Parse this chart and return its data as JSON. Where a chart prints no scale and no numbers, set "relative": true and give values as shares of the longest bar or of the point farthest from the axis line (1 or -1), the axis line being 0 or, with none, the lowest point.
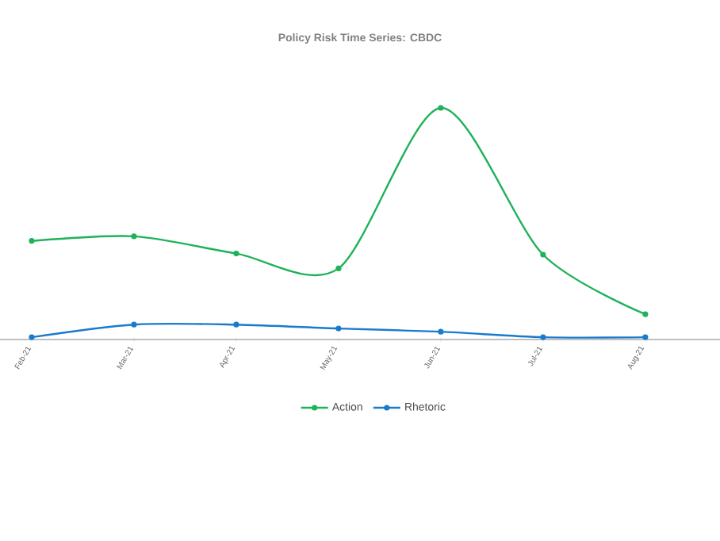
{
  "chart_data": {
    "type": "line",
    "title": "Policy Risk Time Series: CBDC",
    "relative": true,
    "categories": [
      "Feb-21",
      "Mar-21",
      "Apr-21",
      "May-21",
      "Jun-21",
      "Jul-21",
      "Aug-21"
    ],
    "series": [
      {
        "name": "Action",
        "color": "#1fb25a",
        "values": [
          0.42,
          0.44,
          0.365,
          0.3,
          1,
          0.36,
          0.1
        ]
      },
      {
        "name": "Rhetoric",
        "color": "#1a7acd",
        "values": [
          0,
          0.055,
          0.055,
          0.038,
          0.024,
          0,
          0
        ]
      }
    ],
    "legend": "bottom",
    "marker": "circle",
    "line_style": "solid"
  }
}
